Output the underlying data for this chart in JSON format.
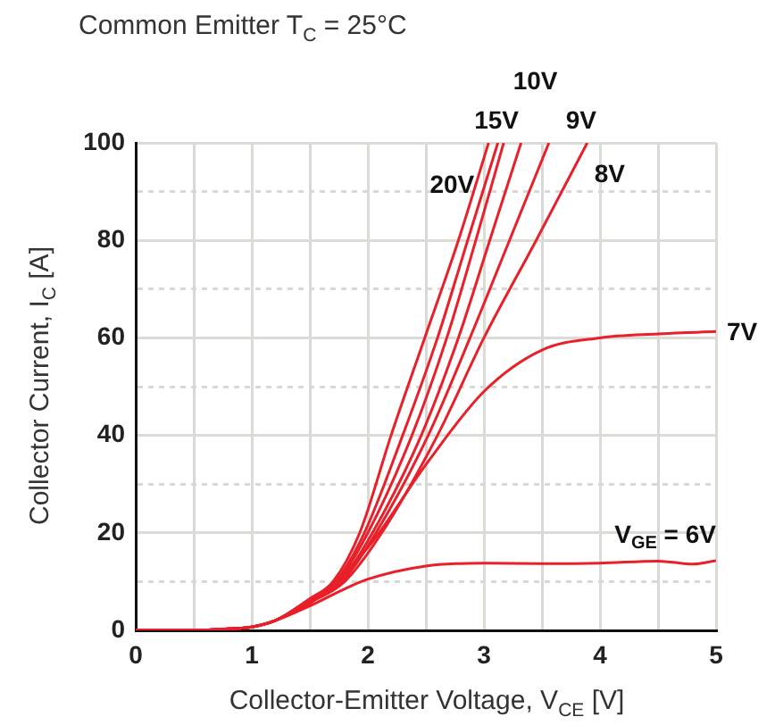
{
  "chart_data": {
    "type": "line",
    "title": "Common Emitter T$_{C}$ = 25°C",
    "xlabel": "Collector-Emitter Voltage, V$_{CE}$ [V]",
    "ylabel": "Collector Current, I$_{C}$ [A]",
    "xlim": [
      0,
      5
    ],
    "xticks": [
      0,
      {
        "value": 0.5,
        "label": null
      },
      1,
      {
        "value": 1.5,
        "label": null
      },
      2,
      {
        "value": 2.5,
        "label": null
      },
      3,
      {
        "value": 3.5,
        "label": null
      },
      4,
      {
        "value": 4.5,
        "label": null
      },
      5
    ],
    "ylim": [
      0,
      100
    ],
    "yticks": [
      0,
      {
        "value": 10,
        "label": null
      },
      20,
      {
        "value": 30,
        "label": null
      },
      40,
      {
        "value": 50,
        "label": null
      },
      60,
      {
        "value": 70,
        "label": null
      },
      80,
      {
        "value": 90,
        "label": null
      },
      100
    ],
    "grid": true,
    "legend": false,
    "marker": "none",
    "line_style": "solid",
    "series": [
      {
        "name": "20V",
        "color": "#e8202a",
        "x": [
          0,
          0.5,
          0.8,
          1,
          1.2,
          1.5,
          1.7,
          1.93,
          2.2,
          2.49,
          2.78,
          3.04
        ],
        "values": [
          0,
          0,
          0.3,
          0.7,
          2,
          6.5,
          10,
          20,
          40,
          60,
          80,
          100
        ]
      },
      {
        "color": "#e8202a",
        "x": [
          1.5,
          1.72,
          1.97,
          2.3,
          2.6,
          2.86,
          3.12
        ],
        "values": [
          6.3,
          10,
          20,
          40,
          60,
          80,
          100
        ]
      },
      {
        "name": "15V",
        "color": "#e8202a",
        "x": [
          0,
          0.5,
          0.8,
          1,
          1.2,
          1.5,
          1.74,
          2.0,
          2.38,
          2.68,
          2.93,
          3.17
        ],
        "values": [
          0,
          0,
          0.3,
          0.7,
          2,
          6.1,
          10,
          20,
          40,
          60,
          80,
          100
        ]
      },
      {
        "name": "10V",
        "color": "#e8202a",
        "x": [
          0,
          0.5,
          0.8,
          1,
          1.2,
          1.5,
          1.76,
          2.04,
          2.46,
          2.78,
          3.05,
          3.32
        ],
        "values": [
          0,
          0,
          0.3,
          0.7,
          2,
          6,
          10,
          20,
          40,
          60,
          80,
          100
        ]
      },
      {
        "name": "9V",
        "color": "#e8202a",
        "x": [
          0,
          0.5,
          0.8,
          1,
          1.2,
          1.5,
          1.78,
          2.07,
          2.52,
          2.88,
          3.22,
          3.56
        ],
        "values": [
          0,
          0,
          0.3,
          0.7,
          2,
          5.8,
          10,
          20,
          40,
          60,
          80,
          100
        ]
      },
      {
        "name": "8V",
        "color": "#e8202a",
        "x": [
          0,
          0.5,
          0.8,
          1,
          1.2,
          1.5,
          1.8,
          2.12,
          2.6,
          3.0,
          3.45,
          3.89
        ],
        "values": [
          0,
          0,
          0.3,
          0.7,
          2,
          5.7,
          10,
          20,
          40,
          60,
          80,
          100
        ]
      },
      {
        "name": "7V",
        "color": "#e8202a",
        "x": [
          0,
          0.5,
          0.8,
          1,
          1.2,
          1.5,
          2,
          2.5,
          3,
          3.5,
          4,
          4.5,
          5
        ],
        "values": [
          0,
          0,
          0.3,
          0.7,
          2,
          5.5,
          17,
          34,
          49,
          57.5,
          60,
          60.8,
          61.3
        ]
      },
      {
        "name": "V$_{GE}$ = 6V",
        "color": "#e8202a",
        "x": [
          0,
          0.5,
          0.8,
          1,
          1.2,
          1.5,
          1.8,
          2,
          2.5,
          3,
          3.5,
          4,
          4.5,
          4.8,
          5
        ],
        "values": [
          0,
          0,
          0.3,
          0.7,
          2,
          5,
          8.5,
          10.5,
          13.2,
          13.8,
          13.7,
          13.8,
          14.2,
          13.6,
          14.3
        ]
      }
    ]
  }
}
